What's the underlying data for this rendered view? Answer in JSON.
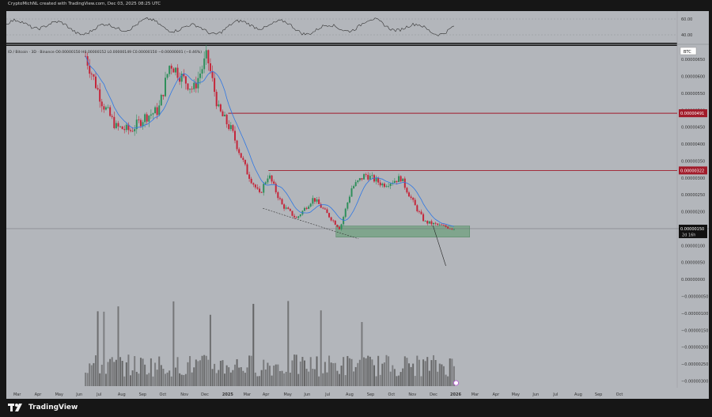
{
  "header": {
    "watermark": "CryptoMichNL created with TradingView.com, Dec 03, 2025 08:25 UTC",
    "legend": "ID / Bitcoin · 3D · Binance  O0.00000150  H0.00000152  L0.00000149  C0.00000150  −0.00000001 (−0.46%)"
  },
  "brand": {
    "name": "TradingView",
    "logo_icon": "tradingview-logo-icon"
  },
  "price_axis": {
    "currency": "BTC",
    "ticks": [
      "0.00000650",
      "0.00000600",
      "0.00000550",
      "0.00000500",
      "0.00000450",
      "0.00000400",
      "0.00000350",
      "0.00000300",
      "0.00000250",
      "0.00000200",
      "0.00000100",
      "0.00000050",
      "0.00000000",
      "−0.00000050",
      "−0.00000100",
      "−0.00000150",
      "−0.00000200",
      "−0.00000250",
      "−0.00000300"
    ],
    "resistance_1_label": "0.00000491",
    "resistance_2_label": "0.00000322",
    "last_price_label": "0.00000150",
    "countdown_label": "2d 16h"
  },
  "rsi_axis": {
    "ticks": [
      "60.00",
      "40.00"
    ]
  },
  "time_axis": {
    "labels": [
      "Mar",
      "Apr",
      "May",
      "Jun",
      "Jul",
      "Aug",
      "Sep",
      "Oct",
      "Nov",
      "Dec",
      "2025",
      "Mar",
      "Apr",
      "May",
      "Jun",
      "Jul",
      "Aug",
      "Sep",
      "Oct",
      "Nov",
      "Dec",
      "2026",
      "Mar",
      "Apr",
      "May",
      "Jun",
      "Jul",
      "Aug",
      "Sep",
      "Oct"
    ]
  },
  "colors": {
    "background": "#b3b6bb",
    "panel_border": "#9a9da2",
    "bull": "#2f8f5b",
    "bear": "#c4263a",
    "ma_line": "#2e77e4",
    "resistance": "#a11b2a",
    "support_zone": "#6f9f7e",
    "support_zone_border": "#3f7c52",
    "rsi_line": "#333333",
    "volume": "#555555"
  },
  "chart_data": {
    "type": "candlestick",
    "symbol": "ID / Bitcoin",
    "interval": "3D",
    "exchange": "Binance",
    "quote_currency": "BTC",
    "last_price": 1.5e-06,
    "resistance_levels": [
      4.91e-06,
      3.22e-06
    ],
    "support_zone": [
      1.25e-06,
      1.58e-06
    ],
    "ylim": [
      -3.2e-06,
      6.9e-06
    ],
    "rsi_range": [
      30,
      70
    ],
    "rsi_ticks": [
      60,
      40
    ],
    "close_path": [
      {
        "date": "2024-06-10",
        "close": 6.6e-06
      },
      {
        "date": "2024-07-05",
        "close": 5.2e-06
      },
      {
        "date": "2024-07-25",
        "close": 4.5e-06
      },
      {
        "date": "2024-08-15",
        "close": 4.4e-06
      },
      {
        "date": "2024-09-05",
        "close": 4.8e-06
      },
      {
        "date": "2024-09-25",
        "close": 5e-06
      },
      {
        "date": "2024-10-12",
        "close": 6.4e-06
      },
      {
        "date": "2024-10-28",
        "close": 6e-06
      },
      {
        "date": "2024-11-15",
        "close": 5.6e-06
      },
      {
        "date": "2024-12-05",
        "close": 6.6e-06
      },
      {
        "date": "2024-12-22",
        "close": 5e-06
      },
      {
        "date": "2025-01-10",
        "close": 4.4e-06
      },
      {
        "date": "2025-02-01",
        "close": 3.2e-06
      },
      {
        "date": "2025-02-20",
        "close": 2.5e-06
      },
      {
        "date": "2025-03-05",
        "close": 3.1e-06
      },
      {
        "date": "2025-03-25",
        "close": 2.2e-06
      },
      {
        "date": "2025-04-15",
        "close": 1.8e-06
      },
      {
        "date": "2025-05-10",
        "close": 2.4e-06
      },
      {
        "date": "2025-06-05",
        "close": 1.8e-06
      },
      {
        "date": "2025-06-18",
        "close": 1.5e-06
      },
      {
        "date": "2025-07-05",
        "close": 2.7e-06
      },
      {
        "date": "2025-07-25",
        "close": 3.1e-06
      },
      {
        "date": "2025-08-20",
        "close": 2.8e-06
      },
      {
        "date": "2025-09-15",
        "close": 3e-06
      },
      {
        "date": "2025-10-05",
        "close": 2.2e-06
      },
      {
        "date": "2025-10-20",
        "close": 1.7e-06
      },
      {
        "date": "2025-11-10",
        "close": 1.6e-06
      },
      {
        "date": "2025-12-03",
        "close": 1.5e-06
      }
    ]
  }
}
